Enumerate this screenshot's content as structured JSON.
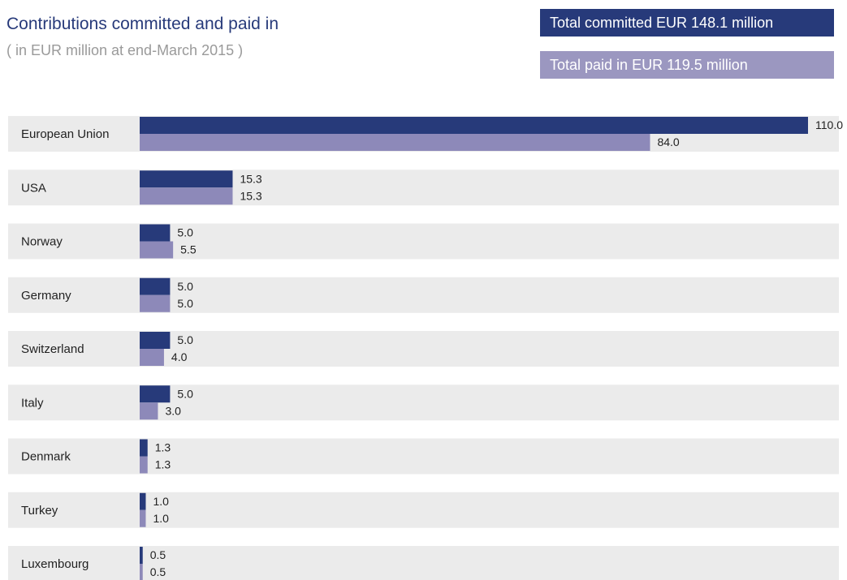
{
  "chart_data": {
    "type": "bar",
    "orientation": "horizontal",
    "title": "Contributions committed and paid in",
    "subtitle": "( in EUR million at end-March 2015 )",
    "categories": [
      "European Union",
      "USA",
      "Norway",
      "Germany",
      "Switzerland",
      "Italy",
      "Denmark",
      "Turkey",
      "Luxembourg"
    ],
    "series": [
      {
        "values": [
          110.0,
          15.3,
          5.0,
          5.0,
          5.0,
          5.0,
          1.3,
          1.0,
          0.5
        ],
        "labels": [
          "110.0",
          "15.3",
          "5.0",
          "5.0",
          "5.0",
          "5.0",
          "1.3",
          "1.0",
          "0.5"
        ],
        "color": "#273a7a"
      },
      {
        "values": [
          84.0,
          15.3,
          5.5,
          5.0,
          4.0,
          3.0,
          1.3,
          1.0,
          0.5
        ],
        "labels": [
          "84.0",
          "15.3",
          "5.5",
          "5.0",
          "4.0",
          "3.0",
          "1.3",
          "1.0",
          "0.5"
        ],
        "color": "#8d89b9"
      }
    ],
    "xlim": [
      0,
      110
    ],
    "grid": false,
    "legend": "none"
  },
  "totals": {
    "committed": "Total committed EUR 148.1 million",
    "paid": "Total paid in EUR 119.5 million"
  },
  "colors": {
    "row_background": "#ebebeb",
    "committed_box": "#273a7a",
    "paid_box": "#9b97c0",
    "title": "#273a7a",
    "subtitle": "#9a9a9a"
  }
}
